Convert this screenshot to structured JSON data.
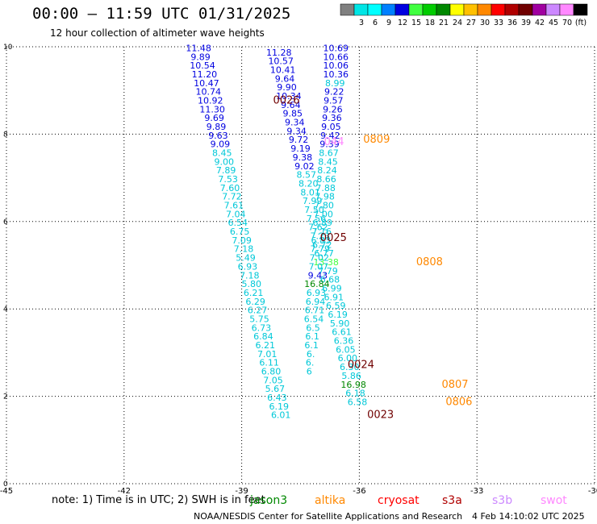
{
  "header": {
    "title": "00:00 – 11:59 UTC 01/31/2025",
    "subtitle": "12 hour collection of altimeter wave heights"
  },
  "colorbar": {
    "segments": [
      {
        "color": "#808080",
        "label": "",
        "name": "colorbar-gray-segment"
      },
      {
        "color": "#00e5e5",
        "label": "3",
        "name": "colorbar-cyan-segment"
      },
      {
        "color": "#00ffff",
        "label": "6",
        "name": "colorbar-lightcyan-segment"
      },
      {
        "color": "#0080ff",
        "label": "9",
        "name": "colorbar-skyblue-segment"
      },
      {
        "color": "#0000e0",
        "label": "12",
        "name": "colorbar-blue-segment"
      },
      {
        "color": "#40ff40",
        "label": "15",
        "name": "colorbar-lightgreen-segment"
      },
      {
        "color": "#00cc00",
        "label": "18",
        "name": "colorbar-green-segment"
      },
      {
        "color": "#008800",
        "label": "21",
        "name": "colorbar-darkgreen-segment"
      },
      {
        "color": "#ffff00",
        "label": "24",
        "name": "colorbar-yellow-segment"
      },
      {
        "color": "#ffc000",
        "label": "27",
        "name": "colorbar-gold-segment"
      },
      {
        "color": "#ff8800",
        "label": "30",
        "name": "colorbar-orange-segment"
      },
      {
        "color": "#ff0000",
        "label": "33",
        "name": "colorbar-red-segment"
      },
      {
        "color": "#b00000",
        "label": "36",
        "name": "colorbar-darkred-segment"
      },
      {
        "color": "#700000",
        "label": "39",
        "name": "colorbar-maroon-segment"
      },
      {
        "color": "#a000a0",
        "label": "42",
        "name": "colorbar-purple-segment"
      },
      {
        "color": "#cc88ff",
        "label": "45",
        "name": "colorbar-lavender-segment"
      },
      {
        "color": "#ff88ff",
        "label": "70",
        "name": "colorbar-pink-segment"
      },
      {
        "color": "#000000",
        "label": "(ft)",
        "name": "colorbar-black-segment"
      }
    ]
  },
  "footer": {
    "note": "note:  1) Time is in UTC; 2) SWH is in feet",
    "credit": "NOAA/NESDIS Center for Satellite Applications and Research",
    "generated": "4 Feb 14:10:02 UTC 2025"
  },
  "satellites": [
    {
      "name": "jason3",
      "color": "#008800"
    },
    {
      "name": "altika",
      "color": "#ff8800"
    },
    {
      "name": "cryosat",
      "color": "#ff0000"
    },
    {
      "name": "s3a",
      "color": "#b00000"
    },
    {
      "name": "s3b",
      "color": "#cc88ff"
    },
    {
      "name": "swot",
      "color": "#ff88ff"
    }
  ],
  "chart_data": {
    "type": "scatter",
    "title": "00:00 – 11:59 UTC 01/31/2025",
    "subtitle": "12 hour collection of altimeter wave heights",
    "units": "ft",
    "xlim": [
      -45,
      -30
    ],
    "ylim": [
      0,
      10
    ],
    "x_ticks": [
      "-45",
      "-42",
      "-39",
      "-36",
      "-33",
      "-30"
    ],
    "y_ticks": [
      "0",
      "2",
      "4",
      "6",
      "8",
      "10"
    ],
    "grid": true,
    "tracks": [
      {
        "color": "#0000e0",
        "points": [
          {
            "x": -40.1,
            "y": 9.9,
            "v": "11.48"
          },
          {
            "x": -40.05,
            "y": 9.7,
            "v": "9.89"
          },
          {
            "x": -40.0,
            "y": 9.5,
            "v": "10.54"
          },
          {
            "x": -39.95,
            "y": 9.3,
            "v": "11.20"
          },
          {
            "x": -39.9,
            "y": 9.1,
            "v": "10.47"
          },
          {
            "x": -39.85,
            "y": 8.9,
            "v": "10.74"
          },
          {
            "x": -39.8,
            "y": 8.7,
            "v": "10.92"
          },
          {
            "x": -39.75,
            "y": 8.5,
            "v": "11.30"
          },
          {
            "x": -39.7,
            "y": 8.3,
            "v": "9.69"
          },
          {
            "x": -39.65,
            "y": 8.1,
            "v": "9.89"
          },
          {
            "x": -39.6,
            "y": 7.9,
            "v": "9.63"
          },
          {
            "x": -39.55,
            "y": 7.7,
            "v": "9.09"
          }
        ]
      },
      {
        "color": "#00c8d8",
        "points": [
          {
            "x": -39.5,
            "y": 7.5,
            "v": "8.45"
          },
          {
            "x": -39.45,
            "y": 7.3,
            "v": "9.00"
          },
          {
            "x": -39.4,
            "y": 7.1,
            "v": "7.89"
          },
          {
            "x": -39.35,
            "y": 6.9,
            "v": "7.53"
          },
          {
            "x": -39.3,
            "y": 6.7,
            "v": "7.60"
          },
          {
            "x": -39.25,
            "y": 6.5,
            "v": "7.72"
          },
          {
            "x": -39.2,
            "y": 6.3,
            "v": "7.61"
          },
          {
            "x": -39.15,
            "y": 6.1,
            "v": "7.04"
          },
          {
            "x": -39.1,
            "y": 5.9,
            "v": "6.54"
          },
          {
            "x": -39.05,
            "y": 5.7,
            "v": "6.75"
          },
          {
            "x": -39.0,
            "y": 5.5,
            "v": "7.09"
          },
          {
            "x": -38.95,
            "y": 5.3,
            "v": "7.18"
          },
          {
            "x": -38.9,
            "y": 5.1,
            "v": "5.49"
          },
          {
            "x": -38.85,
            "y": 4.9,
            "v": "6.93"
          },
          {
            "x": -38.8,
            "y": 4.7,
            "v": "7.18"
          },
          {
            "x": -38.75,
            "y": 4.5,
            "v": "5.80"
          },
          {
            "x": -38.7,
            "y": 4.3,
            "v": "6.21"
          },
          {
            "x": -38.65,
            "y": 4.1,
            "v": "6.29"
          },
          {
            "x": -38.6,
            "y": 3.9,
            "v": "6.27"
          },
          {
            "x": -38.55,
            "y": 3.7,
            "v": "5.75"
          },
          {
            "x": -38.5,
            "y": 3.5,
            "v": "6.73"
          },
          {
            "x": -38.45,
            "y": 3.3,
            "v": "6.84"
          },
          {
            "x": -38.4,
            "y": 3.1,
            "v": "6.21"
          },
          {
            "x": -38.35,
            "y": 2.9,
            "v": "7.01"
          },
          {
            "x": -38.3,
            "y": 2.7,
            "v": "6.11"
          },
          {
            "x": -38.25,
            "y": 2.5,
            "v": "6.80"
          },
          {
            "x": -38.2,
            "y": 2.3,
            "v": "7.05"
          },
          {
            "x": -38.15,
            "y": 2.1,
            "v": "5.67"
          },
          {
            "x": -38.1,
            "y": 1.9,
            "v": "6.43"
          },
          {
            "x": -38.05,
            "y": 1.7,
            "v": "6.19"
          },
          {
            "x": -38.0,
            "y": 1.5,
            "v": "6.01"
          }
        ]
      },
      {
        "color": "#0000e0",
        "points": [
          {
            "x": -38.05,
            "y": 9.8,
            "v": "11.28"
          },
          {
            "x": -38.0,
            "y": 9.6,
            "v": "10.57"
          },
          {
            "x": -37.95,
            "y": 9.4,
            "v": "10.41"
          },
          {
            "x": -37.9,
            "y": 9.2,
            "v": "9.64"
          },
          {
            "x": -37.85,
            "y": 9.0,
            "v": "9.90"
          },
          {
            "x": -37.8,
            "y": 8.8,
            "v": "10.34"
          },
          {
            "x": -37.75,
            "y": 8.6,
            "v": "9.64"
          },
          {
            "x": -37.7,
            "y": 8.4,
            "v": "9.85"
          },
          {
            "x": -37.65,
            "y": 8.2,
            "v": "9.34"
          },
          {
            "x": -37.6,
            "y": 8.0,
            "v": "9.34"
          },
          {
            "x": -37.55,
            "y": 7.8,
            "v": "9.72"
          },
          {
            "x": -37.5,
            "y": 7.6,
            "v": "9.19"
          },
          {
            "x": -37.45,
            "y": 7.4,
            "v": "9.38"
          },
          {
            "x": -37.4,
            "y": 7.2,
            "v": "9.02"
          }
        ]
      },
      {
        "color": "#00c8d8",
        "points": [
          {
            "x": -37.35,
            "y": 7.0,
            "v": "8.57"
          },
          {
            "x": -37.3,
            "y": 6.8,
            "v": "8.20"
          },
          {
            "x": -37.25,
            "y": 6.6,
            "v": "8.01"
          },
          {
            "x": -37.2,
            "y": 6.4,
            "v": "7.99"
          },
          {
            "x": -37.15,
            "y": 6.2,
            "v": "7.50"
          },
          {
            "x": -37.1,
            "y": 6.0,
            "v": "7.56"
          },
          {
            "x": -37.05,
            "y": 5.8,
            "v": "7.62"
          },
          {
            "x": -37.0,
            "y": 5.6,
            "v": "7.23"
          },
          {
            "x": -36.95,
            "y": 5.4,
            "v": "6.72"
          },
          {
            "x": -36.9,
            "y": 5.2,
            "v": "6.77"
          }
        ]
      },
      {
        "color": "#40ff40",
        "points": [
          {
            "x": -36.85,
            "y": 5.0,
            "v": "13.38"
          }
        ]
      },
      {
        "color": "#00c8d8",
        "points": [
          {
            "x": -36.8,
            "y": 4.8,
            "v": "7.79"
          },
          {
            "x": -36.75,
            "y": 4.6,
            "v": "6.68"
          },
          {
            "x": -36.7,
            "y": 4.4,
            "v": "6.99"
          },
          {
            "x": -36.65,
            "y": 4.2,
            "v": "6.91"
          },
          {
            "x": -36.6,
            "y": 4.0,
            "v": "6.59"
          },
          {
            "x": -36.55,
            "y": 3.8,
            "v": "6.19"
          },
          {
            "x": -36.5,
            "y": 3.6,
            "v": "5.90"
          },
          {
            "x": -36.45,
            "y": 3.4,
            "v": "6.61"
          },
          {
            "x": -36.4,
            "y": 3.2,
            "v": "6.36"
          },
          {
            "x": -36.35,
            "y": 3.0,
            "v": "6.05"
          },
          {
            "x": -36.3,
            "y": 2.8,
            "v": "6.00"
          },
          {
            "x": -36.25,
            "y": 2.6,
            "v": "6.30"
          },
          {
            "x": -36.2,
            "y": 2.4,
            "v": "5.86"
          }
        ]
      },
      {
        "color": "#008800",
        "points": [
          {
            "x": -36.15,
            "y": 2.2,
            "v": "16.98"
          }
        ]
      },
      {
        "color": "#00c8d8",
        "points": [
          {
            "x": -36.1,
            "y": 2.0,
            "v": "6.18"
          },
          {
            "x": -36.05,
            "y": 1.8,
            "v": "6.58"
          }
        ]
      },
      {
        "color": "#0000e0",
        "points": [
          {
            "x": -36.6,
            "y": 9.9,
            "v": "10.69"
          },
          {
            "x": -36.6,
            "y": 9.7,
            "v": "10.66"
          },
          {
            "x": -36.6,
            "y": 9.5,
            "v": "10.06"
          },
          {
            "x": -36.6,
            "y": 9.3,
            "v": "10.36"
          }
        ]
      },
      {
        "color": "#00c8d8",
        "points": [
          {
            "x": -36.62,
            "y": 9.1,
            "v": "8.99"
          }
        ]
      },
      {
        "color": "#0000e0",
        "points": [
          {
            "x": -36.64,
            "y": 8.9,
            "v": "9.22"
          },
          {
            "x": -36.66,
            "y": 8.7,
            "v": "9.57"
          },
          {
            "x": -36.68,
            "y": 8.5,
            "v": "9.26"
          },
          {
            "x": -36.7,
            "y": 8.3,
            "v": "9.36"
          },
          {
            "x": -36.72,
            "y": 8.1,
            "v": "9.05"
          },
          {
            "x": -36.74,
            "y": 7.9,
            "v": "9.42"
          },
          {
            "x": -36.76,
            "y": 7.7,
            "v": "9.39"
          }
        ]
      },
      {
        "color": "#00c8d8",
        "points": [
          {
            "x": -36.78,
            "y": 7.5,
            "v": "8.67"
          },
          {
            "x": -36.8,
            "y": 7.3,
            "v": "8.45"
          },
          {
            "x": -36.82,
            "y": 7.1,
            "v": "8.24"
          },
          {
            "x": -36.84,
            "y": 6.9,
            "v": "8.66"
          },
          {
            "x": -36.86,
            "y": 6.7,
            "v": "7.88"
          },
          {
            "x": -36.88,
            "y": 6.5,
            "v": "7.98"
          },
          {
            "x": -36.9,
            "y": 6.3,
            "v": "7.80"
          },
          {
            "x": -36.92,
            "y": 6.1,
            "v": "7.00"
          },
          {
            "x": -36.94,
            "y": 5.9,
            "v": "6.89"
          },
          {
            "x": -36.96,
            "y": 5.7,
            "v": "7.16"
          },
          {
            "x": -36.98,
            "y": 5.5,
            "v": "6.83"
          },
          {
            "x": -37.0,
            "y": 5.3,
            "v": "7.79"
          },
          {
            "x": -37.02,
            "y": 5.1,
            "v": "7.02"
          },
          {
            "x": -37.04,
            "y": 4.9,
            "v": "7.07"
          }
        ]
      },
      {
        "color": "#0000e0",
        "points": [
          {
            "x": -37.06,
            "y": 4.7,
            "v": "9.43"
          }
        ]
      },
      {
        "color": "#008800",
        "points": [
          {
            "x": -37.08,
            "y": 4.5,
            "v": "16.84"
          }
        ]
      },
      {
        "color": "#00c8d8",
        "points": [
          {
            "x": -37.1,
            "y": 4.3,
            "v": "6.93"
          },
          {
            "x": -37.12,
            "y": 4.1,
            "v": "6.94"
          },
          {
            "x": -37.14,
            "y": 3.9,
            "v": "6.71"
          },
          {
            "x": -37.16,
            "y": 3.7,
            "v": "6.54"
          },
          {
            "x": -37.18,
            "y": 3.5,
            "v": "6.5"
          },
          {
            "x": -37.2,
            "y": 3.3,
            "v": "6.1"
          },
          {
            "x": -37.22,
            "y": 3.1,
            "v": "6.1"
          },
          {
            "x": -37.24,
            "y": 2.9,
            "v": "6."
          },
          {
            "x": -37.26,
            "y": 2.7,
            "v": "6."
          },
          {
            "x": -37.28,
            "y": 2.5,
            "v": "6"
          }
        ]
      }
    ],
    "pass_labels": [
      {
        "text": "0026",
        "x": -38.2,
        "y": 8.7,
        "color": "#700000"
      },
      {
        "text": "0025",
        "x": -37.0,
        "y": 5.55,
        "color": "#700000"
      },
      {
        "text": "0024",
        "x": -36.3,
        "y": 2.65,
        "color": "#700000"
      },
      {
        "text": "0023",
        "x": -35.8,
        "y": 1.5,
        "color": "#700000"
      },
      {
        "text": "0809",
        "x": -35.9,
        "y": 7.8,
        "color": "#ff8800"
      },
      {
        "text": "0808",
        "x": -34.55,
        "y": 5.0,
        "color": "#ff8800"
      },
      {
        "text": "0807",
        "x": -33.9,
        "y": 2.2,
        "color": "#ff8800"
      },
      {
        "text": "0806",
        "x": -33.8,
        "y": 1.8,
        "color": "#ff8800"
      },
      {
        "text": "044",
        "x": -36.9,
        "y": 7.75,
        "color": "#ff88ff"
      }
    ]
  }
}
